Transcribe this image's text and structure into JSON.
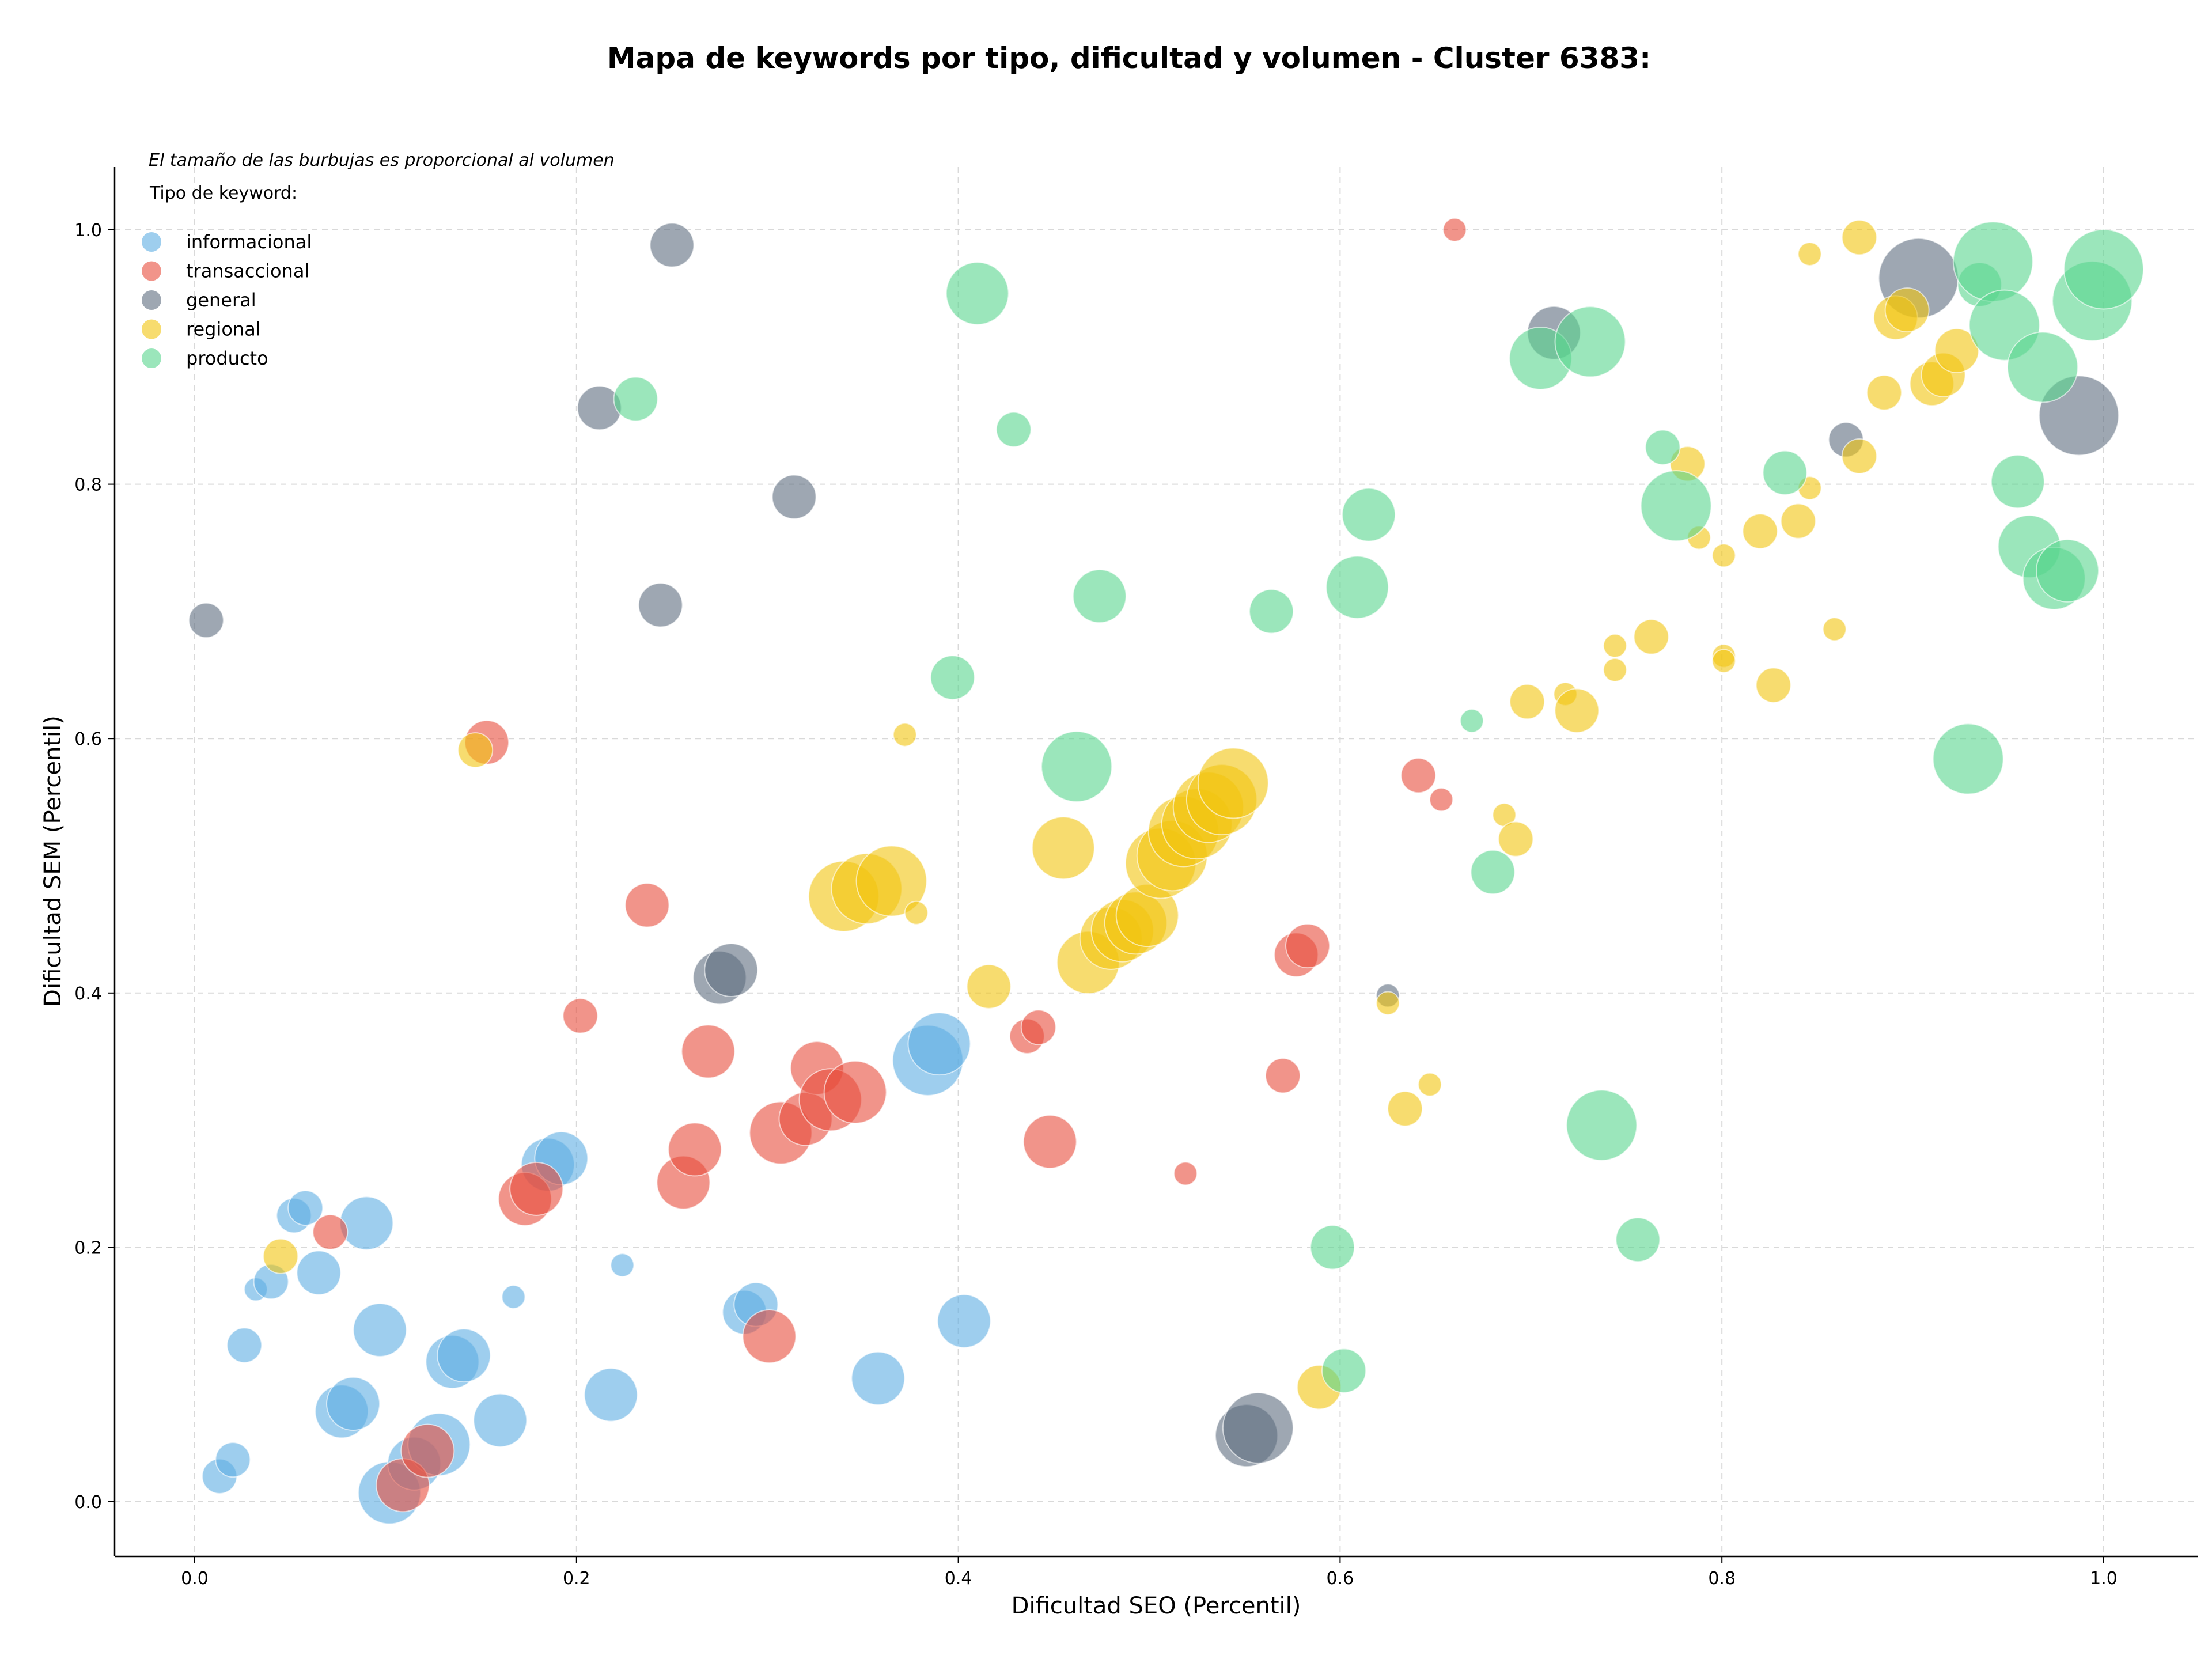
{
  "chart_data": {
    "type": "scatter",
    "title": "Mapa de keywords por tipo, dificultad y volumen - Cluster 6383:",
    "xlabel": "Dificultad SEO (Percentil)",
    "ylabel": "Dificultad SEM (Percentil)",
    "xlim": [
      -0.04,
      1.05
    ],
    "ylim": [
      -0.04,
      1.05
    ],
    "xticks": [
      0.0,
      0.2,
      0.4,
      0.6,
      0.8,
      1.0
    ],
    "yticks": [
      0.0,
      0.2,
      0.4,
      0.6,
      0.8,
      1.0
    ],
    "xtick_labels": [
      "0.0",
      "0.2",
      "0.4",
      "0.6",
      "0.8",
      "1.0"
    ],
    "ytick_labels": [
      "0.0",
      "0.2",
      "0.4",
      "0.6",
      "0.8",
      "1.0"
    ],
    "grid": true,
    "legend_placement": "top-left",
    "annotation": "El tamaño de las burbujas es proporcional al volumen",
    "legend_title": "Tipo de keyword:",
    "series": [
      {
        "name": "informacional",
        "color": "#5dade2",
        "points": [
          [
            0.013,
            0.02,
            2
          ],
          [
            0.02,
            0.033,
            2
          ],
          [
            0.026,
            0.123,
            2
          ],
          [
            0.032,
            0.167,
            1
          ],
          [
            0.04,
            0.173,
            2
          ],
          [
            0.052,
            0.225,
            2
          ],
          [
            0.058,
            0.231,
            2
          ],
          [
            0.065,
            0.18,
            3
          ],
          [
            0.077,
            0.071,
            4
          ],
          [
            0.083,
            0.077,
            4
          ],
          [
            0.09,
            0.219,
            4
          ],
          [
            0.097,
            0.135,
            4
          ],
          [
            0.102,
            0.007,
            5
          ],
          [
            0.115,
            0.03,
            4
          ],
          [
            0.128,
            0.045,
            5
          ],
          [
            0.135,
            0.11,
            4
          ],
          [
            0.141,
            0.115,
            4
          ],
          [
            0.16,
            0.064,
            4
          ],
          [
            0.167,
            0.161,
            1
          ],
          [
            0.185,
            0.265,
            4
          ],
          [
            0.192,
            0.27,
            4
          ],
          [
            0.218,
            0.084,
            4
          ],
          [
            0.224,
            0.186,
            1
          ],
          [
            0.288,
            0.149,
            3
          ],
          [
            0.294,
            0.155,
            3
          ],
          [
            0.358,
            0.097,
            4
          ],
          [
            0.384,
            0.347,
            6
          ],
          [
            0.39,
            0.36,
            5
          ],
          [
            0.403,
            0.142,
            4
          ]
        ]
      },
      {
        "name": "transaccional",
        "color": "#e74c3c",
        "points": [
          [
            0.071,
            0.212,
            2
          ],
          [
            0.109,
            0.013,
            4
          ],
          [
            0.122,
            0.04,
            4
          ],
          [
            0.153,
            0.597,
            3
          ],
          [
            0.173,
            0.238,
            4
          ],
          [
            0.179,
            0.246,
            4
          ],
          [
            0.202,
            0.382,
            2
          ],
          [
            0.237,
            0.469,
            3
          ],
          [
            0.256,
            0.251,
            4
          ],
          [
            0.262,
            0.277,
            4
          ],
          [
            0.269,
            0.354,
            4
          ],
          [
            0.301,
            0.13,
            4
          ],
          [
            0.307,
            0.29,
            5
          ],
          [
            0.32,
            0.301,
            4
          ],
          [
            0.326,
            0.341,
            4
          ],
          [
            0.333,
            0.316,
            5
          ],
          [
            0.346,
            0.322,
            5
          ],
          [
            0.436,
            0.366,
            2
          ],
          [
            0.442,
            0.373,
            2
          ],
          [
            0.448,
            0.283,
            4
          ],
          [
            0.519,
            0.258,
            1
          ],
          [
            0.57,
            0.335,
            2
          ],
          [
            0.577,
            0.43,
            3
          ],
          [
            0.583,
            0.437,
            3
          ],
          [
            0.641,
            0.571,
            2
          ],
          [
            0.653,
            0.552,
            1
          ],
          [
            0.66,
            1.0,
            1
          ]
        ]
      },
      {
        "name": "general",
        "color": "#5d6d7e",
        "points": [
          [
            0.006,
            0.693,
            2
          ],
          [
            0.212,
            0.86,
            3
          ],
          [
            0.244,
            0.705,
            3
          ],
          [
            0.25,
            0.988,
            3
          ],
          [
            0.275,
            0.412,
            4
          ],
          [
            0.281,
            0.418,
            4
          ],
          [
            0.314,
            0.79,
            3
          ],
          [
            0.551,
            0.052,
            5
          ],
          [
            0.557,
            0.058,
            6
          ],
          [
            0.625,
            0.398,
            1
          ],
          [
            0.712,
            0.919,
            4
          ],
          [
            0.865,
            0.835,
            2
          ],
          [
            0.903,
            0.962,
            7
          ],
          [
            0.987,
            0.854,
            7
          ]
        ]
      },
      {
        "name": "regional",
        "color": "#f1c40f",
        "points": [
          [
            0.045,
            0.193,
            2
          ],
          [
            0.147,
            0.591,
            2
          ],
          [
            0.34,
            0.476,
            6
          ],
          [
            0.352,
            0.482,
            6
          ],
          [
            0.365,
            0.488,
            6
          ],
          [
            0.372,
            0.603,
            1
          ],
          [
            0.378,
            0.463,
            1
          ],
          [
            0.416,
            0.405,
            3
          ],
          [
            0.455,
            0.514,
            5
          ],
          [
            0.468,
            0.424,
            5
          ],
          [
            0.48,
            0.443,
            5
          ],
          [
            0.486,
            0.449,
            5
          ],
          [
            0.493,
            0.455,
            5
          ],
          [
            0.499,
            0.461,
            5
          ],
          [
            0.506,
            0.502,
            6
          ],
          [
            0.512,
            0.508,
            6
          ],
          [
            0.518,
            0.527,
            6
          ],
          [
            0.525,
            0.533,
            6
          ],
          [
            0.531,
            0.546,
            6
          ],
          [
            0.538,
            0.552,
            6
          ],
          [
            0.544,
            0.565,
            6
          ],
          [
            0.589,
            0.09,
            3
          ],
          [
            0.625,
            0.392,
            1
          ],
          [
            0.634,
            0.309,
            2
          ],
          [
            0.647,
            0.328,
            1
          ],
          [
            0.686,
            0.54,
            1
          ],
          [
            0.692,
            0.521,
            2
          ],
          [
            0.698,
            0.629,
            2
          ],
          [
            0.718,
            0.635,
            1
          ],
          [
            0.724,
            0.622,
            3
          ],
          [
            0.744,
            0.673,
            1
          ],
          [
            0.744,
            0.654,
            1
          ],
          [
            0.763,
            0.68,
            2
          ],
          [
            0.782,
            0.816,
            2
          ],
          [
            0.788,
            0.758,
            1
          ],
          [
            0.801,
            0.744,
            1
          ],
          [
            0.801,
            0.665,
            1
          ],
          [
            0.801,
            0.661,
            1
          ],
          [
            0.82,
            0.763,
            2
          ],
          [
            0.827,
            0.642,
            2
          ],
          [
            0.84,
            0.771,
            2
          ],
          [
            0.846,
            0.797,
            1
          ],
          [
            0.846,
            0.981,
            1
          ],
          [
            0.859,
            0.686,
            1
          ],
          [
            0.872,
            0.822,
            2
          ],
          [
            0.872,
            0.994,
            2
          ],
          [
            0.885,
            0.872,
            2
          ],
          [
            0.891,
            0.931,
            3
          ],
          [
            0.897,
            0.937,
            3
          ],
          [
            0.91,
            0.879,
            3
          ],
          [
            0.916,
            0.886,
            3
          ],
          [
            0.923,
            0.905,
            3
          ]
        ]
      },
      {
        "name": "producto",
        "color": "#58d68d",
        "points": [
          [
            0.231,
            0.867,
            3
          ],
          [
            0.41,
            0.95,
            5
          ],
          [
            0.429,
            0.843,
            2
          ],
          [
            0.397,
            0.648,
            3
          ],
          [
            0.462,
            0.578,
            6
          ],
          [
            0.474,
            0.712,
            4
          ],
          [
            0.564,
            0.7,
            3
          ],
          [
            0.596,
            0.2,
            3
          ],
          [
            0.602,
            0.103,
            3
          ],
          [
            0.609,
            0.719,
            5
          ],
          [
            0.615,
            0.776,
            4
          ],
          [
            0.669,
            0.614,
            1
          ],
          [
            0.68,
            0.495,
            3
          ],
          [
            0.705,
            0.899,
            5
          ],
          [
            0.731,
            0.912,
            6
          ],
          [
            0.737,
            0.296,
            6
          ],
          [
            0.756,
            0.206,
            3
          ],
          [
            0.769,
            0.829,
            2
          ],
          [
            0.776,
            0.783,
            6
          ],
          [
            0.833,
            0.809,
            3
          ],
          [
            0.929,
            0.584,
            6
          ],
          [
            0.935,
            0.957,
            3
          ],
          [
            0.942,
            0.975,
            7
          ],
          [
            0.948,
            0.925,
            6
          ],
          [
            0.955,
            0.802,
            4
          ],
          [
            0.961,
            0.751,
            5
          ],
          [
            0.968,
            0.892,
            6
          ],
          [
            0.974,
            0.726,
            5
          ],
          [
            0.981,
            0.732,
            5
          ],
          [
            0.994,
            0.944,
            7
          ],
          [
            1.0,
            0.969,
            7
          ]
        ]
      }
    ]
  }
}
